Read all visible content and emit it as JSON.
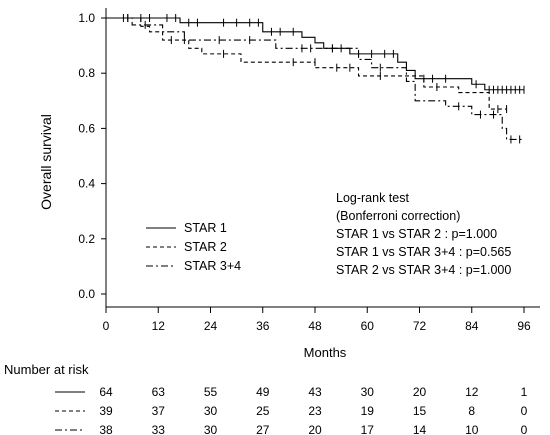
{
  "chart_data": {
    "type": "line",
    "subtype": "kaplan-meier",
    "title": "",
    "xlabel": "Months",
    "ylabel": "Overall survival",
    "xlim": [
      0,
      96
    ],
    "ylim": [
      0,
      1.0
    ],
    "x_ticks": [
      0,
      12,
      24,
      36,
      48,
      60,
      72,
      84,
      96
    ],
    "y_ticks": [
      0.0,
      0.2,
      0.4,
      0.6,
      0.8,
      1.0
    ],
    "x_tick_labels": [
      "0",
      "12",
      "24",
      "36",
      "48",
      "60",
      "72",
      "84",
      "96"
    ],
    "y_tick_labels": [
      "0.0",
      "0.2",
      "0.4",
      "0.6",
      "0.8",
      "1.0"
    ],
    "grid": false,
    "legend_position": "lower-left",
    "series": [
      {
        "name": "STAR 1",
        "line_style": "solid",
        "steps": [
          [
            0,
            1.0
          ],
          [
            17,
            0.983
          ],
          [
            36,
            0.95
          ],
          [
            45,
            0.93
          ],
          [
            48,
            0.91
          ],
          [
            50,
            0.89
          ],
          [
            56,
            0.87
          ],
          [
            67,
            0.84
          ],
          [
            69,
            0.81
          ],
          [
            71,
            0.78
          ],
          [
            84,
            0.76
          ],
          [
            87,
            0.74
          ],
          [
            96,
            0.74
          ]
        ],
        "censored": [
          [
            4,
            1.0
          ],
          [
            5,
            1.0
          ],
          [
            8,
            1.0
          ],
          [
            10,
            1.0
          ],
          [
            14,
            1.0
          ],
          [
            16,
            1.0
          ],
          [
            19,
            0.983
          ],
          [
            21,
            0.983
          ],
          [
            27,
            0.983
          ],
          [
            30,
            0.983
          ],
          [
            33,
            0.983
          ],
          [
            35,
            0.983
          ],
          [
            38,
            0.95
          ],
          [
            40,
            0.95
          ],
          [
            43,
            0.95
          ],
          [
            52,
            0.89
          ],
          [
            54,
            0.89
          ],
          [
            58,
            0.87
          ],
          [
            61,
            0.87
          ],
          [
            64,
            0.87
          ],
          [
            66,
            0.87
          ],
          [
            73,
            0.78
          ],
          [
            75,
            0.78
          ],
          [
            78,
            0.78
          ],
          [
            85,
            0.76
          ],
          [
            88,
            0.74
          ],
          [
            89,
            0.74
          ],
          [
            90,
            0.74
          ],
          [
            91,
            0.74
          ],
          [
            92,
            0.74
          ],
          [
            93,
            0.74
          ],
          [
            94,
            0.74
          ],
          [
            95,
            0.74
          ],
          [
            96,
            0.74
          ]
        ]
      },
      {
        "name": "STAR 2",
        "line_style": "dashed",
        "steps": [
          [
            0,
            1.0
          ],
          [
            8,
            0.97
          ],
          [
            10,
            0.95
          ],
          [
            13,
            0.92
          ],
          [
            19,
            0.89
          ],
          [
            22,
            0.87
          ],
          [
            31,
            0.84
          ],
          [
            41,
            0.84
          ],
          [
            48,
            0.82
          ],
          [
            58,
            0.79
          ],
          [
            73,
            0.75
          ],
          [
            81,
            0.73
          ],
          [
            88,
            0.67
          ],
          [
            92,
            0.67
          ]
        ],
        "censored": [
          [
            5,
            1.0
          ],
          [
            15,
            0.92
          ],
          [
            18,
            0.92
          ],
          [
            27,
            0.87
          ],
          [
            43,
            0.84
          ],
          [
            48,
            0.84
          ],
          [
            53,
            0.82
          ],
          [
            56,
            0.82
          ],
          [
            63,
            0.79
          ],
          [
            76,
            0.75
          ],
          [
            90,
            0.67
          ],
          [
            92,
            0.67
          ]
        ]
      },
      {
        "name": "STAR 3+4",
        "line_style": "dashdot",
        "steps": [
          [
            0,
            1.0
          ],
          [
            6,
            0.975
          ],
          [
            13,
            0.95
          ],
          [
            18,
            0.92
          ],
          [
            20,
            0.92
          ],
          [
            39,
            0.89
          ],
          [
            58,
            0.85
          ],
          [
            61,
            0.82
          ],
          [
            69,
            0.77
          ],
          [
            71,
            0.7
          ],
          [
            78,
            0.68
          ],
          [
            84,
            0.65
          ],
          [
            86,
            0.65
          ],
          [
            91,
            0.6
          ],
          [
            92,
            0.56
          ],
          [
            96,
            0.56
          ]
        ],
        "censored": [
          [
            9,
            0.975
          ],
          [
            26,
            0.92
          ],
          [
            33,
            0.92
          ],
          [
            45,
            0.89
          ],
          [
            47,
            0.89
          ],
          [
            52,
            0.89
          ],
          [
            63,
            0.82
          ],
          [
            81,
            0.68
          ],
          [
            86,
            0.65
          ],
          [
            89,
            0.65
          ],
          [
            93,
            0.56
          ],
          [
            95,
            0.56
          ]
        ]
      }
    ],
    "annotations": [
      "Log-rank test",
      "(Bonferroni correction)",
      "STAR 1 vs STAR 2 : p=1.000",
      "STAR 1 vs STAR 3+4 : p=0.565",
      "STAR 2 vs STAR 3+4 : p=1.000"
    ],
    "risk_table": {
      "title": "Number at risk",
      "times": [
        0,
        12,
        24,
        36,
        48,
        60,
        72,
        84,
        96
      ],
      "rows": [
        {
          "line_style": "solid",
          "counts": [
            "64",
            "63",
            "55",
            "49",
            "43",
            "30",
            "20",
            "12",
            "1"
          ]
        },
        {
          "line_style": "dashed",
          "counts": [
            "39",
            "37",
            "30",
            "25",
            "23",
            "19",
            "15",
            "8",
            "0"
          ]
        },
        {
          "line_style": "dashdot",
          "counts": [
            "38",
            "33",
            "30",
            "27",
            "20",
            "17",
            "14",
            "10",
            "0"
          ]
        }
      ]
    }
  }
}
